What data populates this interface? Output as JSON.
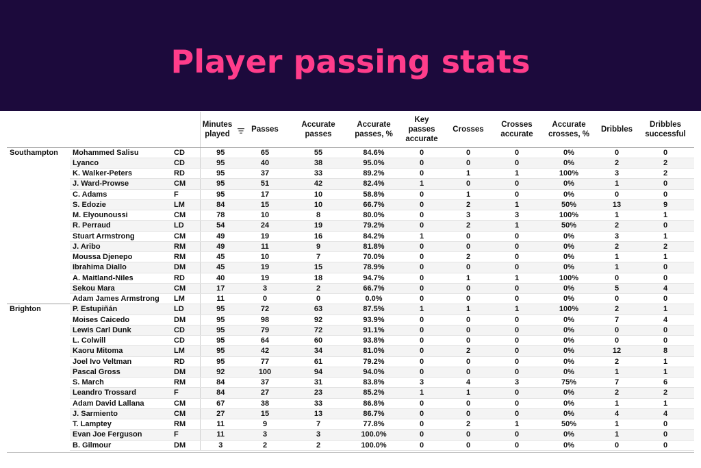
{
  "title": "Player passing stats",
  "columns": [
    "Minutes played",
    "Passes",
    "Accurate passes",
    "Accurate passes, %",
    "Key passes accurate",
    "Crosses",
    "Crosses accurate",
    "Accurate crosses, %",
    "Dribbles",
    "Dribbles successful"
  ],
  "sort_icon": "sort-descending-icon",
  "teams": [
    {
      "name": "Southampton",
      "players": [
        {
          "name": "Mohammed Salisu",
          "pos": "CD",
          "stats": [
            "95",
            "65",
            "55",
            "84.6%",
            "0",
            "0",
            "0",
            "0%",
            "0",
            "0"
          ]
        },
        {
          "name": "Lyanco",
          "pos": "CD",
          "stats": [
            "95",
            "40",
            "38",
            "95.0%",
            "0",
            "0",
            "0",
            "0%",
            "2",
            "2"
          ]
        },
        {
          "name": "K. Walker-Peters",
          "pos": "RD",
          "stats": [
            "95",
            "37",
            "33",
            "89.2%",
            "0",
            "1",
            "1",
            "100%",
            "3",
            "2"
          ]
        },
        {
          "name": "J. Ward-Prowse",
          "pos": "CM",
          "stats": [
            "95",
            "51",
            "42",
            "82.4%",
            "1",
            "0",
            "0",
            "0%",
            "1",
            "0"
          ]
        },
        {
          "name": "C. Adams",
          "pos": "F",
          "stats": [
            "95",
            "17",
            "10",
            "58.8%",
            "0",
            "1",
            "0",
            "0%",
            "0",
            "0"
          ]
        },
        {
          "name": "S. Edozie",
          "pos": "LM",
          "stats": [
            "84",
            "15",
            "10",
            "66.7%",
            "0",
            "2",
            "1",
            "50%",
            "13",
            "9"
          ]
        },
        {
          "name": "M. Elyounoussi",
          "pos": "CM",
          "stats": [
            "78",
            "10",
            "8",
            "80.0%",
            "0",
            "3",
            "3",
            "100%",
            "1",
            "1"
          ]
        },
        {
          "name": "R. Perraud",
          "pos": "LD",
          "stats": [
            "54",
            "24",
            "19",
            "79.2%",
            "0",
            "2",
            "1",
            "50%",
            "2",
            "0"
          ]
        },
        {
          "name": "Stuart Armstrong",
          "pos": "CM",
          "stats": [
            "49",
            "19",
            "16",
            "84.2%",
            "1",
            "0",
            "0",
            "0%",
            "3",
            "1"
          ]
        },
        {
          "name": "J. Aribo",
          "pos": "RM",
          "stats": [
            "49",
            "11",
            "9",
            "81.8%",
            "0",
            "0",
            "0",
            "0%",
            "2",
            "2"
          ]
        },
        {
          "name": "Moussa Djenepo",
          "pos": "RM",
          "stats": [
            "45",
            "10",
            "7",
            "70.0%",
            "0",
            "2",
            "0",
            "0%",
            "1",
            "1"
          ]
        },
        {
          "name": "Ibrahima Diallo",
          "pos": "DM",
          "stats": [
            "45",
            "19",
            "15",
            "78.9%",
            "0",
            "0",
            "0",
            "0%",
            "1",
            "0"
          ]
        },
        {
          "name": "A. Maitland-Niles",
          "pos": "RD",
          "stats": [
            "40",
            "19",
            "18",
            "94.7%",
            "0",
            "1",
            "1",
            "100%",
            "0",
            "0"
          ]
        },
        {
          "name": "Sekou Mara",
          "pos": "CM",
          "stats": [
            "17",
            "3",
            "2",
            "66.7%",
            "0",
            "0",
            "0",
            "0%",
            "5",
            "4"
          ]
        },
        {
          "name": "Adam James Armstrong",
          "pos": "LM",
          "stats": [
            "11",
            "0",
            "0",
            "0.0%",
            "0",
            "0",
            "0",
            "0%",
            "0",
            "0"
          ]
        }
      ]
    },
    {
      "name": "Brighton",
      "players": [
        {
          "name": "P. Estupiñán",
          "pos": "LD",
          "stats": [
            "95",
            "72",
            "63",
            "87.5%",
            "1",
            "1",
            "1",
            "100%",
            "2",
            "1"
          ]
        },
        {
          "name": "Moises Caicedo",
          "pos": "DM",
          "stats": [
            "95",
            "98",
            "92",
            "93.9%",
            "0",
            "0",
            "0",
            "0%",
            "7",
            "4"
          ]
        },
        {
          "name": "Lewis Carl Dunk",
          "pos": "CD",
          "stats": [
            "95",
            "79",
            "72",
            "91.1%",
            "0",
            "0",
            "0",
            "0%",
            "0",
            "0"
          ]
        },
        {
          "name": "L. Colwill",
          "pos": "CD",
          "stats": [
            "95",
            "64",
            "60",
            "93.8%",
            "0",
            "0",
            "0",
            "0%",
            "0",
            "0"
          ]
        },
        {
          "name": "Kaoru Mitoma",
          "pos": "LM",
          "stats": [
            "95",
            "42",
            "34",
            "81.0%",
            "0",
            "2",
            "0",
            "0%",
            "12",
            "8"
          ]
        },
        {
          "name": "Joel Ivo Veltman",
          "pos": "RD",
          "stats": [
            "95",
            "77",
            "61",
            "79.2%",
            "0",
            "0",
            "0",
            "0%",
            "2",
            "1"
          ]
        },
        {
          "name": "Pascal Gross",
          "pos": "DM",
          "stats": [
            "92",
            "100",
            "94",
            "94.0%",
            "0",
            "0",
            "0",
            "0%",
            "1",
            "1"
          ]
        },
        {
          "name": "S. March",
          "pos": "RM",
          "stats": [
            "84",
            "37",
            "31",
            "83.8%",
            "3",
            "4",
            "3",
            "75%",
            "7",
            "6"
          ]
        },
        {
          "name": "Leandro Trossard",
          "pos": "F",
          "stats": [
            "84",
            "27",
            "23",
            "85.2%",
            "1",
            "1",
            "0",
            "0%",
            "2",
            "2"
          ]
        },
        {
          "name": "Adam David Lallana",
          "pos": "CM",
          "stats": [
            "67",
            "38",
            "33",
            "86.8%",
            "0",
            "0",
            "0",
            "0%",
            "1",
            "1"
          ]
        },
        {
          "name": "J. Sarmiento",
          "pos": "CM",
          "stats": [
            "27",
            "15",
            "13",
            "86.7%",
            "0",
            "0",
            "0",
            "0%",
            "4",
            "4"
          ]
        },
        {
          "name": "T. Lamptey",
          "pos": "RM",
          "stats": [
            "11",
            "9",
            "7",
            "77.8%",
            "0",
            "2",
            "1",
            "50%",
            "1",
            "0"
          ]
        },
        {
          "name": "Evan Joe Ferguson",
          "pos": "F",
          "stats": [
            "11",
            "3",
            "3",
            "100.0%",
            "0",
            "0",
            "0",
            "0%",
            "1",
            "0"
          ]
        },
        {
          "name": "B. Gilmour",
          "pos": "DM",
          "stats": [
            "3",
            "2",
            "2",
            "100.0%",
            "0",
            "0",
            "0",
            "0%",
            "0",
            "0"
          ]
        }
      ]
    }
  ]
}
